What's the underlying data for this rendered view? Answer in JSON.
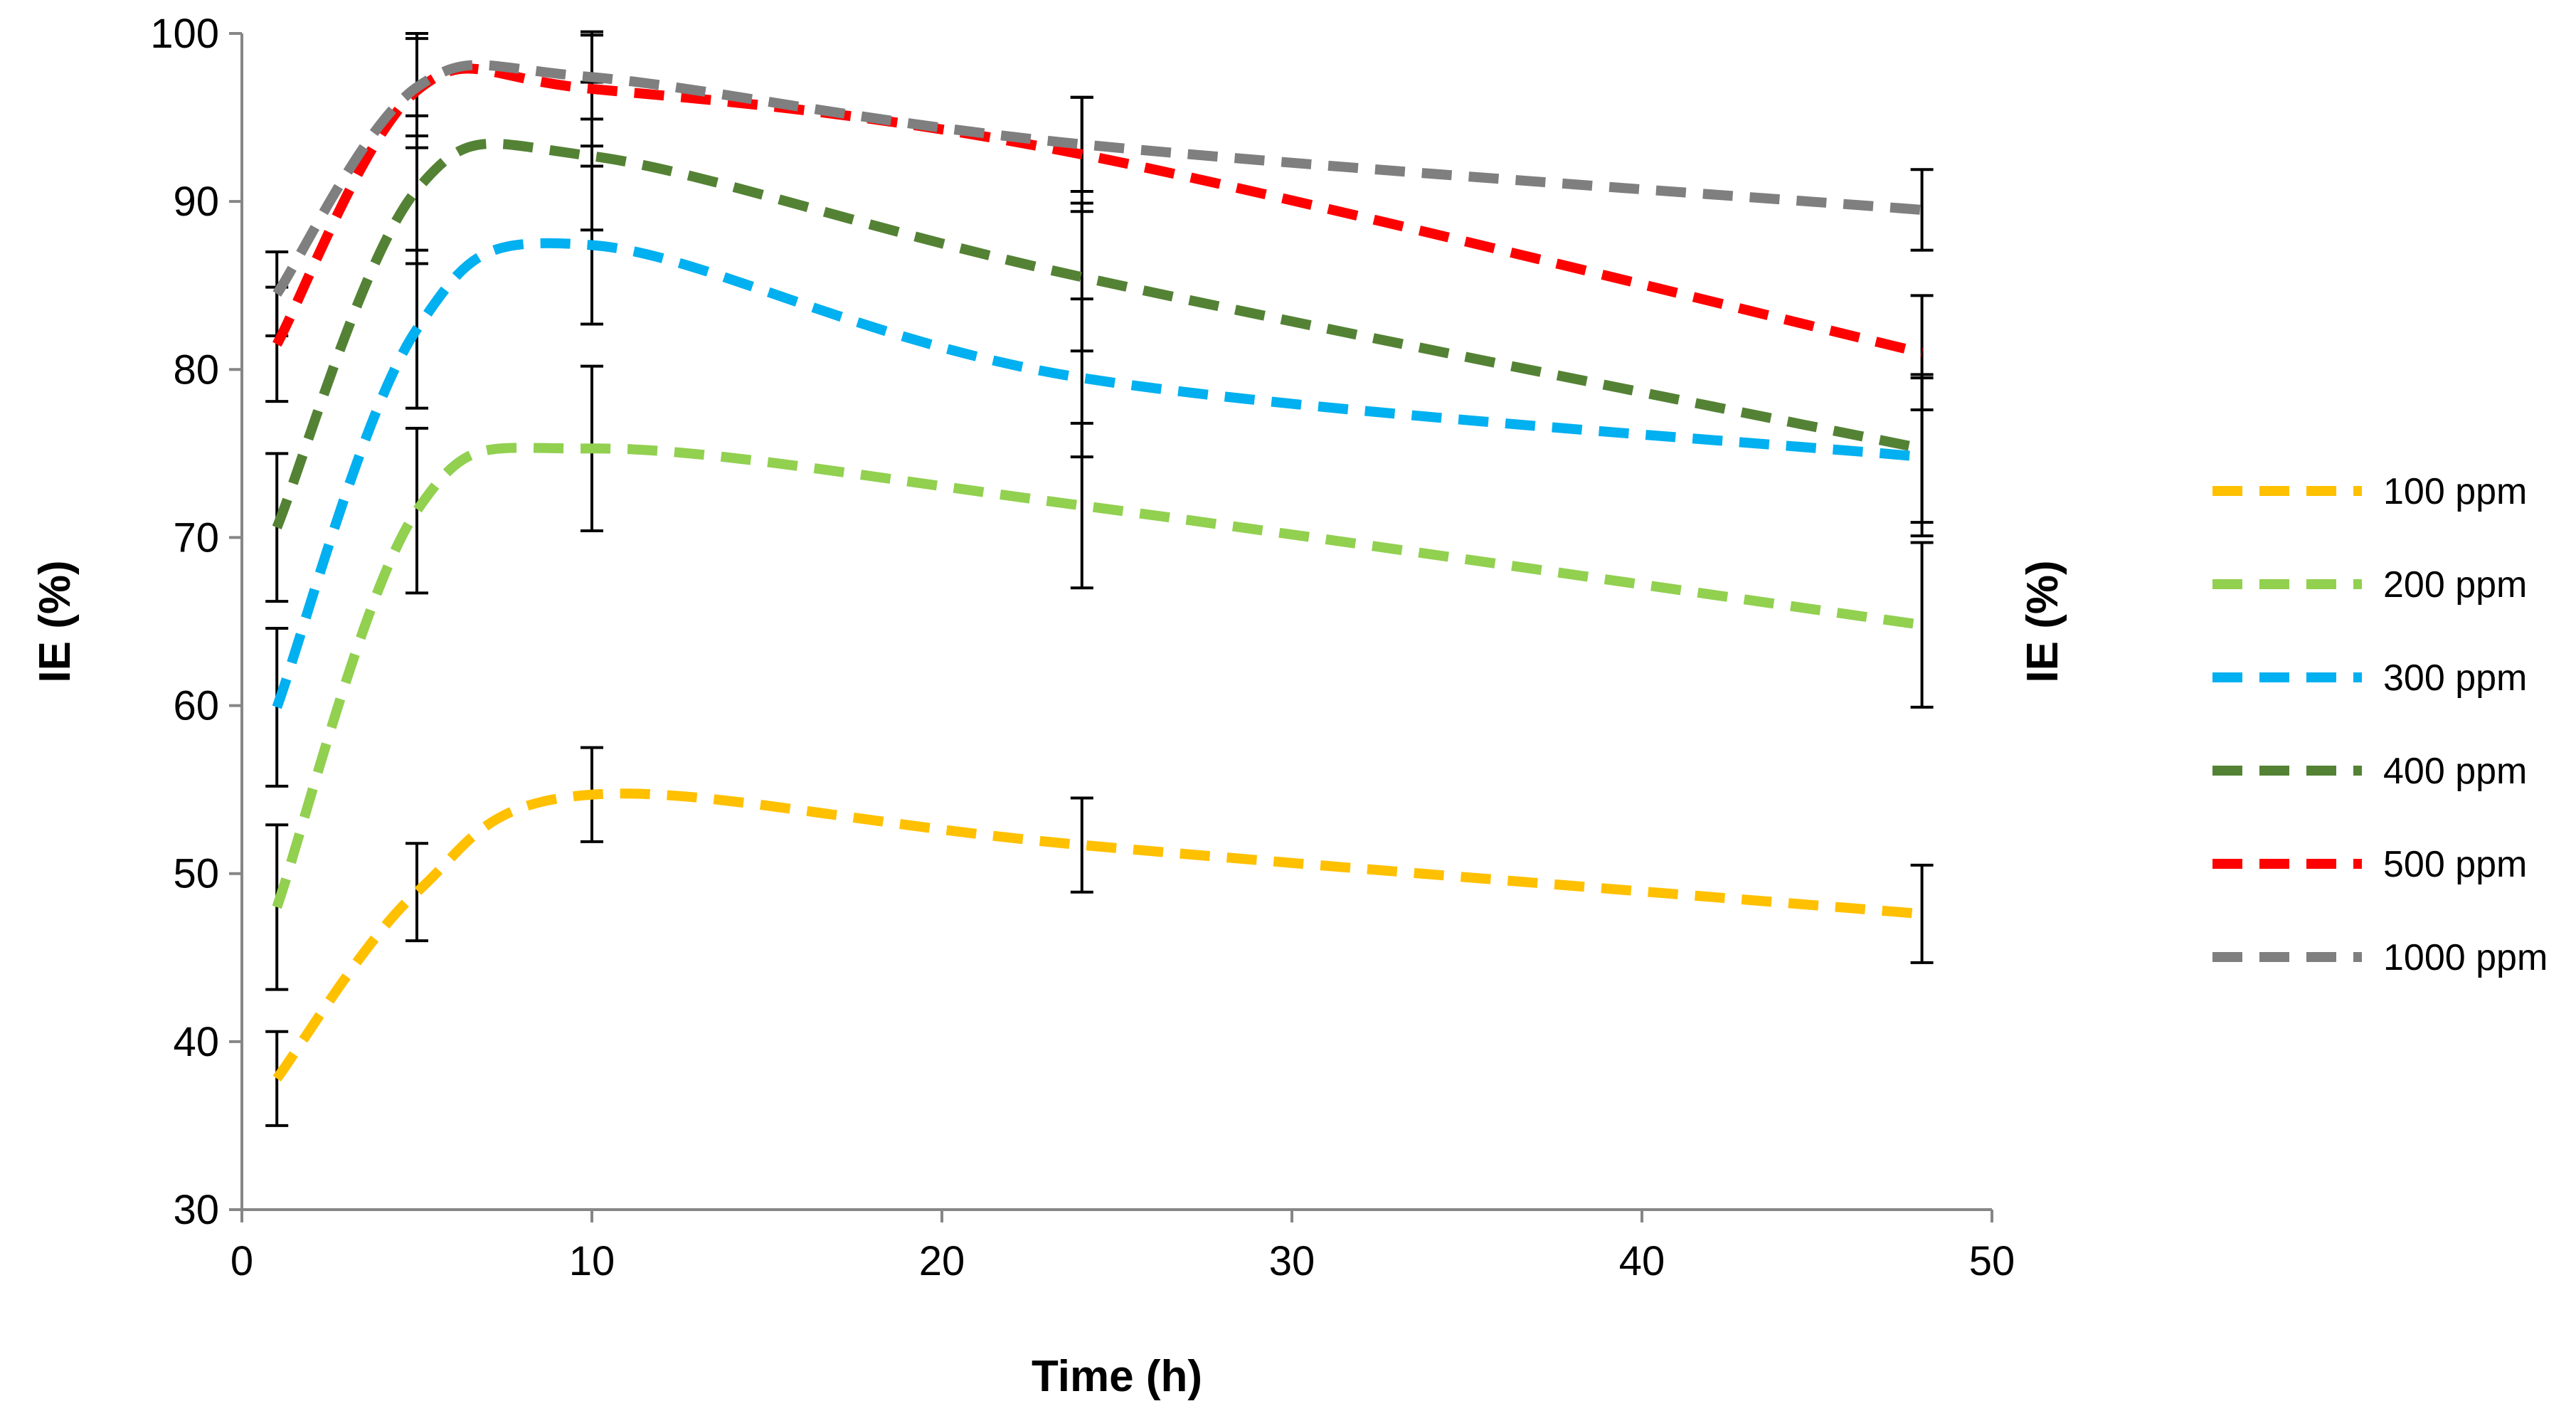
{
  "chart_data": {
    "type": "line",
    "title": "",
    "xlabel": "Time (h)",
    "ylabel": "IE (%)",
    "ylabel_right": "IE (%)",
    "xlim": [
      0,
      50
    ],
    "ylim": [
      30,
      100
    ],
    "x_ticks": [
      "0",
      "10",
      "20",
      "30",
      "40",
      "50"
    ],
    "y_ticks": [
      "30",
      "40",
      "50",
      "60",
      "70",
      "80",
      "90",
      "100"
    ],
    "grid": false,
    "legend_position": "right",
    "line_style": "dashed-smooth",
    "x": [
      1,
      5,
      10,
      24,
      48
    ],
    "series": [
      {
        "name": "100 ppm",
        "color": "#FFC000",
        "values": [
          37.8,
          48.9,
          54.7,
          51.7,
          47.6
        ],
        "errors": [
          2.8,
          2.9,
          2.8,
          2.8,
          2.9
        ]
      },
      {
        "name": "200 ppm",
        "color": "#92D050",
        "values": [
          48.0,
          71.6,
          75.3,
          71.9,
          64.8
        ],
        "errors": [
          4.9,
          4.9,
          4.9,
          4.9,
          4.9
        ]
      },
      {
        "name": "300 ppm",
        "color": "#00B0F0",
        "values": [
          59.9,
          82.4,
          87.4,
          79.5,
          74.8
        ],
        "errors": [
          4.7,
          4.7,
          4.7,
          4.7,
          4.7
        ]
      },
      {
        "name": "400 ppm",
        "color": "#548235",
        "values": [
          70.6,
          90.7,
          92.7,
          85.5,
          75.3
        ],
        "errors": [
          4.4,
          4.4,
          4.4,
          4.4,
          4.4
        ]
      },
      {
        "name": "500 ppm",
        "color": "#FF0000",
        "values": [
          81.5,
          96.6,
          96.7,
          92.8,
          81.0
        ],
        "errors": [
          3.4,
          3.4,
          3.4,
          3.4,
          3.4
        ]
      },
      {
        "name": "1000 ppm",
        "color": "#7F7F7F",
        "values": [
          84.5,
          96.8,
          97.4,
          93.4,
          89.5
        ],
        "errors": [
          2.5,
          2.9,
          2.5,
          2.8,
          2.4
        ]
      }
    ]
  }
}
